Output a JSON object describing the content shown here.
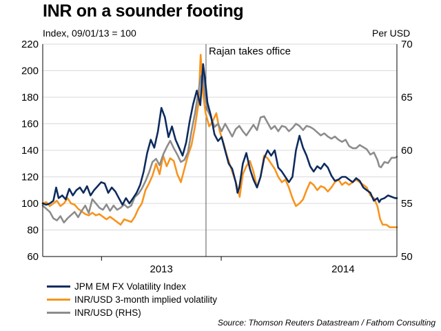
{
  "colors": {
    "jpm": "#0d2b5e",
    "inr_vol": "#f7941d",
    "inr_usd": "#8c8c8c",
    "grid": "#d9d9d9",
    "axis": "#000000",
    "event_line": "#555555"
  },
  "source": "Source: Thomson Reuters Datastream / Fathom Consulting",
  "chart_data": {
    "type": "line",
    "title": "INR on a sounder footing",
    "subtitle": "Index, 09/01/13 = 100",
    "y_right_label": "Per USD",
    "x_ticks": [
      "2013",
      "2014"
    ],
    "xlim": [
      0,
      100
    ],
    "x_tick_positions": [
      33.5,
      84.8
    ],
    "x_boundaries": [
      16.6,
      50.4
    ],
    "ylim_left": [
      60,
      220
    ],
    "yticks_left": [
      60,
      80,
      100,
      120,
      140,
      160,
      180,
      200,
      220
    ],
    "ylim_right": [
      50,
      70
    ],
    "yticks_right": [
      50,
      55,
      60,
      65,
      70
    ],
    "grid": "horizontal",
    "legend_position": "bottom-left",
    "annotations": [
      {
        "text": "Rajan takes office",
        "x": 46.1
      }
    ],
    "series": [
      {
        "name": "JPM EM FX Volatility Index",
        "axis": "left",
        "color": "#0d2b5e",
        "points": [
          [
            0,
            100
          ],
          [
            1,
            99
          ],
          [
            2,
            100
          ],
          [
            3,
            102
          ],
          [
            3.8,
            112
          ],
          [
            4.5,
            104
          ],
          [
            5.5,
            106
          ],
          [
            6.5,
            103
          ],
          [
            7.5,
            111
          ],
          [
            8.5,
            106
          ],
          [
            9.5,
            110
          ],
          [
            10.5,
            112
          ],
          [
            11.5,
            108
          ],
          [
            12.5,
            113
          ],
          [
            13.5,
            106
          ],
          [
            14.5,
            110
          ],
          [
            15.5,
            113
          ],
          [
            16.5,
            116
          ],
          [
            17.5,
            115
          ],
          [
            18.5,
            108
          ],
          [
            19.5,
            112
          ],
          [
            20.5,
            109
          ],
          [
            21.5,
            104
          ],
          [
            22.5,
            99
          ],
          [
            23.5,
            104
          ],
          [
            24.5,
            100
          ],
          [
            25.5,
            104
          ],
          [
            26.5,
            108
          ],
          [
            27.5,
            114
          ],
          [
            28.5,
            124
          ],
          [
            29.5,
            138
          ],
          [
            30.5,
            148
          ],
          [
            31.5,
            142
          ],
          [
            32.5,
            154
          ],
          [
            33.5,
            172
          ],
          [
            34.5,
            165
          ],
          [
            35.5,
            150
          ],
          [
            36.5,
            158
          ],
          [
            37.5,
            148
          ],
          [
            38.5,
            142
          ],
          [
            39.5,
            136
          ],
          [
            40.5,
            146
          ],
          [
            41.5,
            162
          ],
          [
            42.5,
            175
          ],
          [
            43.5,
            185
          ],
          [
            44.5,
            174
          ],
          [
            45.3,
            205
          ],
          [
            45.9,
            192
          ],
          [
            46.5,
            176
          ],
          [
            47.5,
            166
          ],
          [
            48.5,
            152
          ],
          [
            49.5,
            147
          ],
          [
            50.5,
            150
          ],
          [
            51.5,
            140
          ],
          [
            52.5,
            130
          ],
          [
            53.5,
            126
          ],
          [
            54.5,
            116
          ],
          [
            55,
            108
          ],
          [
            55.5,
            112
          ],
          [
            56.5,
            130
          ],
          [
            57.5,
            138
          ],
          [
            58.5,
            126
          ],
          [
            59.5,
            118
          ],
          [
            60.5,
            112
          ],
          [
            61.5,
            120
          ],
          [
            62.5,
            134
          ],
          [
            63.5,
            140
          ],
          [
            64.5,
            136
          ],
          [
            65.5,
            140
          ],
          [
            66.5,
            127
          ],
          [
            67.5,
            124
          ],
          [
            68.5,
            120
          ],
          [
            69.5,
            116
          ],
          [
            70.5,
            120
          ],
          [
            71.5,
            140
          ],
          [
            72.5,
            151
          ],
          [
            73.5,
            142
          ],
          [
            74.5,
            136
          ],
          [
            75.5,
            128
          ],
          [
            76.5,
            124
          ],
          [
            77.5,
            128
          ],
          [
            78.5,
            126
          ],
          [
            79.5,
            130
          ],
          [
            80.5,
            127
          ],
          [
            81.5,
            121
          ],
          [
            82.5,
            117
          ],
          [
            83.5,
            118
          ],
          [
            84.5,
            120
          ],
          [
            85.5,
            120
          ],
          [
            86.5,
            118
          ],
          [
            87.5,
            116
          ],
          [
            88.5,
            119
          ],
          [
            89.5,
            117
          ],
          [
            90.5,
            112
          ],
          [
            91.5,
            110
          ],
          [
            92.5,
            108
          ],
          [
            93.5,
            102
          ],
          [
            94.5,
            104
          ],
          [
            95,
            101
          ],
          [
            95.5,
            103
          ],
          [
            96.5,
            104
          ],
          [
            97.5,
            106
          ],
          [
            98.5,
            105
          ],
          [
            99.5,
            104
          ],
          [
            100,
            104
          ]
        ]
      },
      {
        "name": "INR/USD 3-month implied volatility",
        "axis": "left",
        "color": "#f7941d",
        "points": [
          [
            0,
            100
          ],
          [
            1,
            101
          ],
          [
            2,
            98
          ],
          [
            3,
            100
          ],
          [
            4,
            102
          ],
          [
            5,
            98
          ],
          [
            6,
            100
          ],
          [
            7,
            104
          ],
          [
            8,
            100
          ],
          [
            9,
            99
          ],
          [
            10,
            96
          ],
          [
            11,
            94
          ],
          [
            12,
            92
          ],
          [
            13,
            91
          ],
          [
            14,
            93
          ],
          [
            15,
            91
          ],
          [
            16,
            92
          ],
          [
            17,
            90
          ],
          [
            18,
            88
          ],
          [
            19,
            90
          ],
          [
            20,
            88
          ],
          [
            21,
            86
          ],
          [
            22,
            84
          ],
          [
            23,
            88
          ],
          [
            24,
            87
          ],
          [
            25,
            86
          ],
          [
            26,
            90
          ],
          [
            27,
            96
          ],
          [
            28,
            100
          ],
          [
            29,
            110
          ],
          [
            30,
            115
          ],
          [
            31,
            121
          ],
          [
            32,
            130
          ],
          [
            33,
            122
          ],
          [
            34,
            136
          ],
          [
            35,
            128
          ],
          [
            36,
            134
          ],
          [
            37,
            132
          ],
          [
            38,
            122
          ],
          [
            39,
            116
          ],
          [
            40,
            126
          ],
          [
            41,
            136
          ],
          [
            42,
            144
          ],
          [
            43,
            158
          ],
          [
            44,
            176
          ],
          [
            44.6,
            212
          ],
          [
            45.3,
            182
          ],
          [
            46,
            168
          ],
          [
            47,
            158
          ],
          [
            48,
            162
          ],
          [
            49,
            168
          ],
          [
            50,
            154
          ],
          [
            51,
            146
          ],
          [
            52,
            136
          ],
          [
            53,
            128
          ],
          [
            54,
            120
          ],
          [
            55,
            112
          ],
          [
            55.6,
            105
          ],
          [
            56.5,
            122
          ],
          [
            57.5,
            128
          ],
          [
            58.5,
            132
          ],
          [
            59.5,
            124
          ],
          [
            60.5,
            112
          ],
          [
            61.5,
            120
          ],
          [
            62.5,
            136
          ],
          [
            63.5,
            134
          ],
          [
            64.5,
            130
          ],
          [
            65.5,
            126
          ],
          [
            66.5,
            120
          ],
          [
            67.5,
            116
          ],
          [
            68.5,
            118
          ],
          [
            69.5,
            112
          ],
          [
            70.5,
            104
          ],
          [
            71.5,
            98
          ],
          [
            72.5,
            100
          ],
          [
            73.5,
            103
          ],
          [
            74.5,
            110
          ],
          [
            75.5,
            116
          ],
          [
            76.5,
            114
          ],
          [
            77.5,
            110
          ],
          [
            78.5,
            113
          ],
          [
            79.5,
            112
          ],
          [
            80.5,
            109
          ],
          [
            81.5,
            112
          ],
          [
            82.5,
            116
          ],
          [
            83.5,
            118
          ],
          [
            84.5,
            114
          ],
          [
            85.5,
            116
          ],
          [
            86.5,
            114
          ],
          [
            87.5,
            116
          ],
          [
            88.5,
            118
          ],
          [
            89.5,
            116
          ],
          [
            90.5,
            114
          ],
          [
            91.5,
            112
          ],
          [
            92.5,
            106
          ],
          [
            93.5,
            104
          ],
          [
            94.5,
            98
          ],
          [
            95.3,
            88
          ],
          [
            96,
            84
          ],
          [
            97,
            84
          ],
          [
            98,
            82
          ],
          [
            99,
            82
          ],
          [
            100,
            82
          ]
        ]
      },
      {
        "name": "INR/USD (RHS)",
        "axis": "right",
        "color": "#8c8c8c",
        "points": [
          [
            0,
            54.8
          ],
          [
            1,
            54.5
          ],
          [
            2,
            54.2
          ],
          [
            3,
            53.6
          ],
          [
            4,
            53.4
          ],
          [
            5,
            53.8
          ],
          [
            6,
            53.2
          ],
          [
            7,
            53.6
          ],
          [
            8,
            53.9
          ],
          [
            9,
            54.2
          ],
          [
            10,
            53.7
          ],
          [
            11,
            54.3
          ],
          [
            12,
            54.8
          ],
          [
            13,
            54.1
          ],
          [
            14,
            55.4
          ],
          [
            15,
            55.0
          ],
          [
            16,
            54.6
          ],
          [
            17,
            54.4
          ],
          [
            18,
            54.9
          ],
          [
            19,
            54.3
          ],
          [
            20,
            54.8
          ],
          [
            21,
            54.4
          ],
          [
            22,
            54.6
          ],
          [
            23,
            54.9
          ],
          [
            24,
            54.6
          ],
          [
            25,
            54.8
          ],
          [
            26,
            55.6
          ],
          [
            27,
            55.9
          ],
          [
            28,
            56.4
          ],
          [
            29,
            57.1
          ],
          [
            30,
            57.9
          ],
          [
            31,
            58.9
          ],
          [
            32,
            59.2
          ],
          [
            33,
            58.6
          ],
          [
            34,
            59.6
          ],
          [
            35,
            60.3
          ],
          [
            36,
            60.9
          ],
          [
            37,
            60.2
          ],
          [
            38,
            59.6
          ],
          [
            39,
            58.9
          ],
          [
            40,
            59.1
          ],
          [
            41,
            59.8
          ],
          [
            42,
            61.8
          ],
          [
            43,
            63.5
          ],
          [
            44,
            65.6
          ],
          [
            44.6,
            66.9
          ],
          [
            45.2,
            67.3
          ],
          [
            45.8,
            65.2
          ],
          [
            46.5,
            63.8
          ],
          [
            47.5,
            63.1
          ],
          [
            48.5,
            62.2
          ],
          [
            49.5,
            62.5
          ],
          [
            50.5,
            61.8
          ],
          [
            51.5,
            62.5
          ],
          [
            52.5,
            61.9
          ],
          [
            53.5,
            61.3
          ],
          [
            54.5,
            62.0
          ],
          [
            55.5,
            62.3
          ],
          [
            56.5,
            61.8
          ],
          [
            57.5,
            61.4
          ],
          [
            58.5,
            61.9
          ],
          [
            59.5,
            62.4
          ],
          [
            60.5,
            61.9
          ],
          [
            61.5,
            63.1
          ],
          [
            62.5,
            63.2
          ],
          [
            63.5,
            62.6
          ],
          [
            64.5,
            62.0
          ],
          [
            65.5,
            62.3
          ],
          [
            66.5,
            61.8
          ],
          [
            67.5,
            62.3
          ],
          [
            68.5,
            62.2
          ],
          [
            69.5,
            61.8
          ],
          [
            70.5,
            62.1
          ],
          [
            71.5,
            62.5
          ],
          [
            72.5,
            62.3
          ],
          [
            73.5,
            61.9
          ],
          [
            74.5,
            62.3
          ],
          [
            75.5,
            62.2
          ],
          [
            76.5,
            62.0
          ],
          [
            77.5,
            61.7
          ],
          [
            78.5,
            61.4
          ],
          [
            79.5,
            61.6
          ],
          [
            80.5,
            61.3
          ],
          [
            81.5,
            61.1
          ],
          [
            82.5,
            61.3
          ],
          [
            83.5,
            61.0
          ],
          [
            84.5,
            60.8
          ],
          [
            85.5,
            61.0
          ],
          [
            86.5,
            60.4
          ],
          [
            87.5,
            60.2
          ],
          [
            88.5,
            60.2
          ],
          [
            89.5,
            60.5
          ],
          [
            90.5,
            60.3
          ],
          [
            91.5,
            60.1
          ],
          [
            92.5,
            59.6
          ],
          [
            93.5,
            59.8
          ],
          [
            94.5,
            59.1
          ],
          [
            95,
            58.5
          ],
          [
            95.5,
            58.4
          ],
          [
            96.5,
            58.9
          ],
          [
            97.5,
            58.8
          ],
          [
            98.5,
            59.3
          ],
          [
            99.5,
            59.3
          ],
          [
            100,
            59.4
          ]
        ]
      }
    ]
  }
}
